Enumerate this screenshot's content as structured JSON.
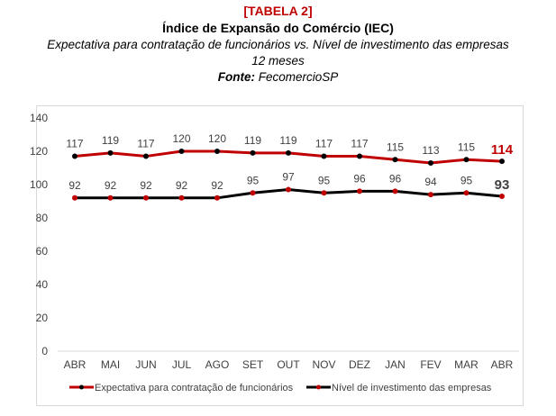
{
  "header": {
    "tag": "[TABELA 2]",
    "title": "Índice de Expansão do Comércio (IEC)",
    "subtitle": "Expectativa para contratação de funcionários vs. Nível de investimento das empresas",
    "period": "12 meses",
    "source_label": "Fonte:",
    "source_value": " FecomercioSP"
  },
  "chart_data": {
    "type": "line",
    "categories": [
      "ABR",
      "MAI",
      "JUN",
      "JUL",
      "AGO",
      "SET",
      "OUT",
      "NOV",
      "DEZ",
      "JAN",
      "FEV",
      "MAR",
      "ABR"
    ],
    "ylim": [
      0,
      140
    ],
    "yticks": [
      0,
      20,
      40,
      60,
      80,
      100,
      120,
      140
    ],
    "grid": false,
    "legend": "bottom",
    "series": [
      {
        "name": "Expectativa para contratação de funcionários",
        "color": "#c00000",
        "marker": "#000000",
        "values": [
          117,
          119,
          117,
          120,
          120,
          119,
          119,
          117,
          117,
          115,
          113,
          115,
          114
        ]
      },
      {
        "name": "Nível de investimento das empresas",
        "color": "#000000",
        "marker": "#c00000",
        "values": [
          92,
          92,
          92,
          92,
          92,
          95,
          97,
          95,
          96,
          96,
          94,
          95,
          93
        ]
      }
    ]
  }
}
